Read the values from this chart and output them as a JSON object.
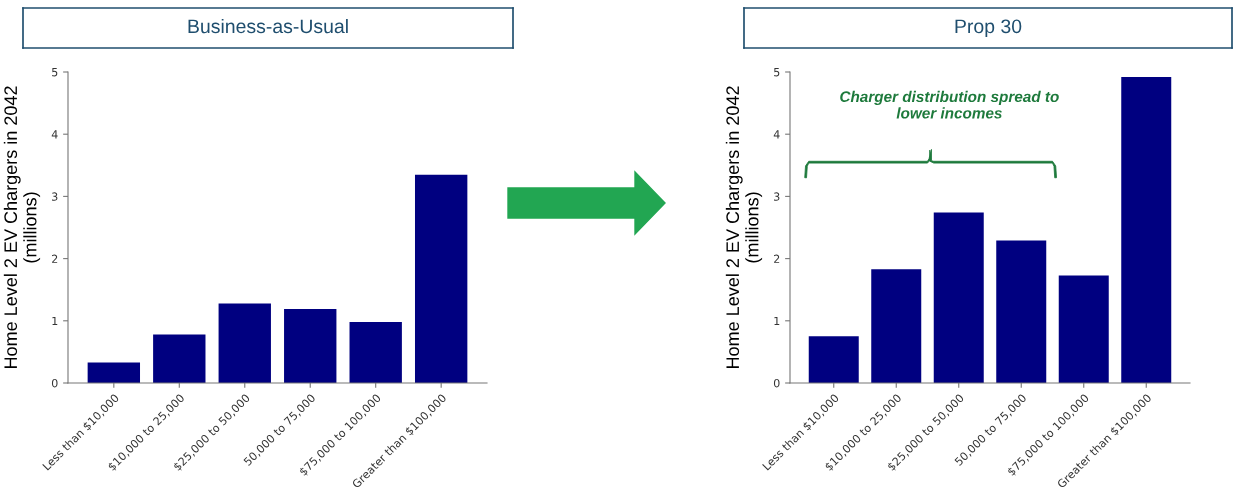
{
  "chart_data": [
    {
      "type": "bar",
      "title": "Business-as-Usual",
      "ylabel": "Home Level 2 EV Chargers in 2042\n(millions)",
      "categories": [
        "Less than $10,000",
        "$10,000 to 25,000",
        "$25,000 to 50,000",
        "50,000 to 75,000",
        "$75,000 to 100,000",
        "Greater than $100,000"
      ],
      "values": [
        0.33,
        0.78,
        1.28,
        1.19,
        0.98,
        3.35
      ],
      "color": "#000080",
      "ylim": [
        0,
        5
      ],
      "yticks": [
        0,
        1,
        2,
        3,
        4,
        5
      ],
      "grid": false,
      "legend": false
    },
    {
      "type": "bar",
      "title": "Prop 30",
      "ylabel": "Home Level 2 EV Chargers in 2042\n(millions)",
      "categories": [
        "Less than $10,000",
        "$10,000 to 25,000",
        "$25,000 to 50,000",
        "50,000 to 75,000",
        "$75,000 to 100,000",
        "Greater than $100,000"
      ],
      "values": [
        0.75,
        1.83,
        2.74,
        2.29,
        1.73,
        4.92
      ],
      "color": "#000080",
      "ylim": [
        0,
        5
      ],
      "yticks": [
        0,
        1,
        2,
        3,
        4,
        5
      ],
      "grid": false,
      "legend": false,
      "annotations": [
        "Charger distribution spread to\nlower incomes"
      ]
    }
  ]
}
